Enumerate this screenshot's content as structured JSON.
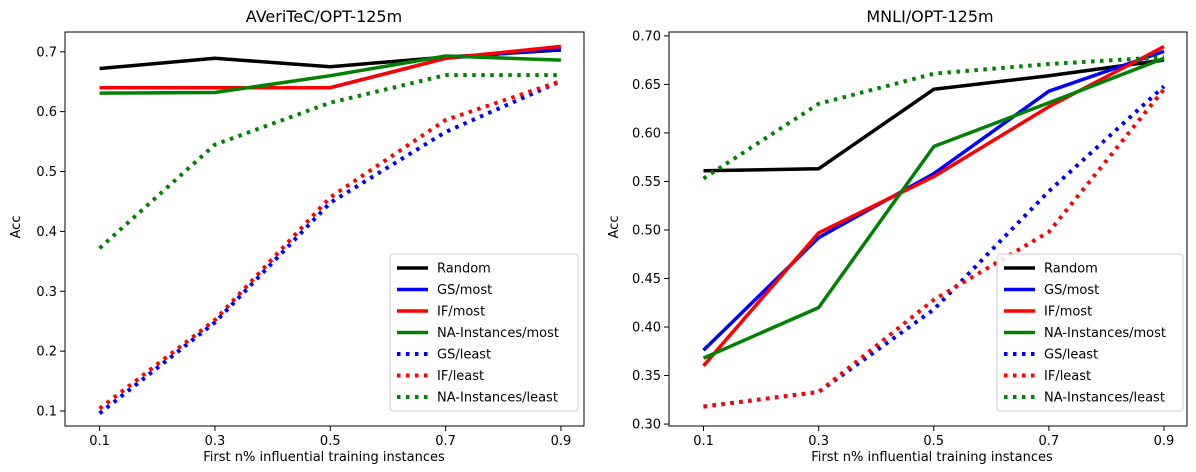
{
  "chart_data": [
    {
      "type": "line",
      "title": "AVeriTeC/OPT-125m",
      "xlabel": "First n% influential training instances",
      "ylabel": "Acc",
      "x": [
        0.1,
        0.3,
        0.5,
        0.7,
        0.9
      ],
      "xticks": [
        "0.1",
        "0.3",
        "0.5",
        "0.7",
        "0.9"
      ],
      "yticks": [
        0.1,
        0.2,
        0.3,
        0.4,
        0.5,
        0.6,
        0.7
      ],
      "ytick_labels": [
        "0.1",
        "0.2",
        "0.3",
        "0.4",
        "0.5",
        "0.6",
        "0.7"
      ],
      "xlim": [
        0.04,
        0.94
      ],
      "ylim": [
        0.075,
        0.733
      ],
      "legend_loc": "lower right",
      "grid": false,
      "series": [
        {
          "name": "Random",
          "color": "#000000",
          "style": "solid",
          "values": [
            0.672,
            0.689,
            0.675,
            0.691,
            0.703
          ]
        },
        {
          "name": "GS/most",
          "color": "#0000ff",
          "style": "solid",
          "values": [
            0.64,
            0.64,
            0.64,
            0.689,
            0.705
          ]
        },
        {
          "name": "IF/most",
          "color": "#ff0000",
          "style": "solid",
          "values": [
            0.64,
            0.64,
            0.64,
            0.689,
            0.709
          ]
        },
        {
          "name": "NA-Instances/most",
          "color": "#008000",
          "style": "solid",
          "values": [
            0.631,
            0.632,
            0.66,
            0.693,
            0.686
          ]
        },
        {
          "name": "GS/least",
          "color": "#0000ff",
          "style": "dotted",
          "values": [
            0.096,
            0.248,
            0.448,
            0.566,
            0.651
          ]
        },
        {
          "name": "IF/least",
          "color": "#ff0000",
          "style": "dotted",
          "values": [
            0.104,
            0.252,
            0.457,
            0.586,
            0.651
          ]
        },
        {
          "name": "NA-Instances/least",
          "color": "#008000",
          "style": "dotted",
          "values": [
            0.372,
            0.545,
            0.615,
            0.661,
            0.661
          ]
        }
      ]
    },
    {
      "type": "line",
      "title": "MNLI/OPT-125m",
      "xlabel": "First n% influential training instances",
      "ylabel": "Acc",
      "x": [
        0.1,
        0.3,
        0.5,
        0.7,
        0.9
      ],
      "xticks": [
        "0.1",
        "0.3",
        "0.5",
        "0.7",
        "0.9"
      ],
      "yticks": [
        0.3,
        0.35,
        0.4,
        0.45,
        0.5,
        0.55,
        0.6,
        0.65,
        0.7
      ],
      "ytick_labels": [
        "0.30",
        "0.35",
        "0.40",
        "0.45",
        "0.50",
        "0.55",
        "0.60",
        "0.65",
        "0.70"
      ],
      "xlim": [
        0.04,
        0.94
      ],
      "ylim": [
        0.298,
        0.704
      ],
      "legend_loc": "lower right",
      "grid": false,
      "series": [
        {
          "name": "Random",
          "color": "#000000",
          "style": "solid",
          "values": [
            0.561,
            0.563,
            0.645,
            0.659,
            0.675
          ]
        },
        {
          "name": "GS/most",
          "color": "#0000ff",
          "style": "solid",
          "values": [
            0.376,
            0.492,
            0.558,
            0.643,
            0.684
          ]
        },
        {
          "name": "IF/most",
          "color": "#ff0000",
          "style": "solid",
          "values": [
            0.36,
            0.497,
            0.555,
            0.627,
            0.689
          ]
        },
        {
          "name": "NA-Instances/most",
          "color": "#008000",
          "style": "solid",
          "values": [
            0.368,
            0.42,
            0.586,
            0.631,
            0.677
          ]
        },
        {
          "name": "GS/least",
          "color": "#0000ff",
          "style": "dotted",
          "values": [
            0.318,
            0.333,
            0.418,
            0.54,
            0.648
          ]
        },
        {
          "name": "IF/least",
          "color": "#ff0000",
          "style": "dotted",
          "values": [
            0.318,
            0.333,
            0.428,
            0.498,
            0.645
          ]
        },
        {
          "name": "NA-Instances/least",
          "color": "#008000",
          "style": "dotted",
          "values": [
            0.553,
            0.63,
            0.661,
            0.671,
            0.678
          ]
        }
      ]
    }
  ]
}
